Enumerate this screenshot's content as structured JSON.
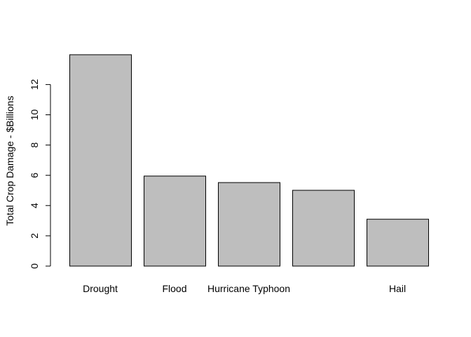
{
  "chart_data": {
    "type": "bar",
    "title": "",
    "xlabel": "",
    "ylabel": "Total Crop Damage - $Billions",
    "categories": [
      "Drought",
      "Flood",
      "Hurricane Typhoon",
      "",
      "Hail"
    ],
    "values": [
      13.97,
      5.95,
      5.52,
      5.01,
      3.1
    ],
    "ylim": [
      0,
      14
    ],
    "yticks": [
      0,
      2,
      4,
      6,
      8,
      10,
      12
    ],
    "grid": false,
    "legend": "none",
    "bar_color": "#BEBEBE",
    "bar_border_color": "#000000"
  }
}
